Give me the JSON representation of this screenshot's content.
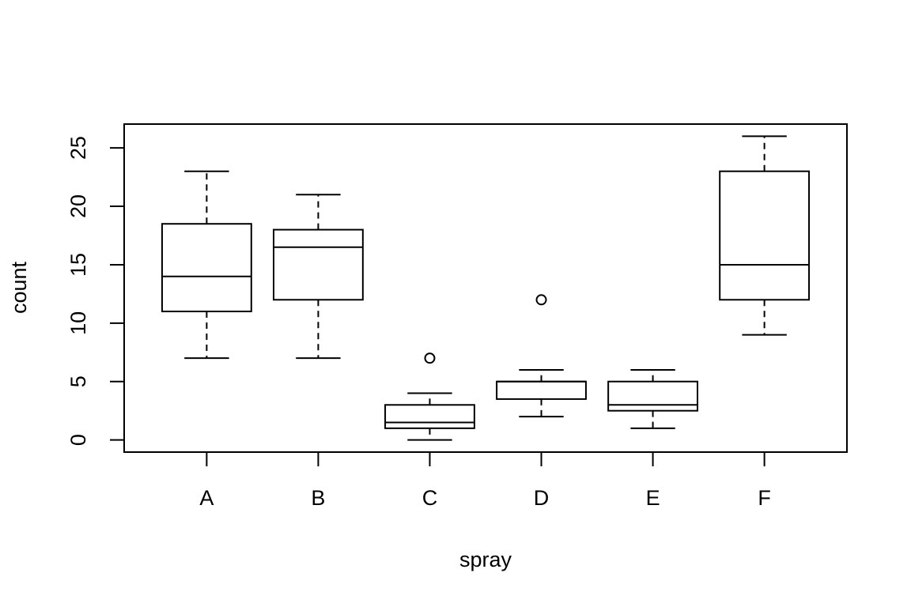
{
  "chart_data": {
    "type": "boxplot",
    "x_label": "spray",
    "y_label": "count",
    "categories": [
      "A",
      "B",
      "C",
      "D",
      "E",
      "F"
    ],
    "boxes": [
      {
        "min": 7,
        "q1": 11,
        "median": 14,
        "q3": 18.5,
        "max": 23
      },
      {
        "min": 7,
        "q1": 12,
        "median": 16.5,
        "q3": 18,
        "max": 21
      },
      {
        "min": 0,
        "q1": 1,
        "median": 1.5,
        "q3": 3,
        "max": 4,
        "outliers": [
          7
        ]
      },
      {
        "min": 2,
        "q1": 3.5,
        "median": 5,
        "q3": 5,
        "max": 6,
        "outliers": [
          12
        ]
      },
      {
        "min": 1,
        "q1": 2.5,
        "median": 3,
        "q3": 5,
        "max": 6
      },
      {
        "min": 9,
        "q1": 12,
        "median": 15,
        "q3": 23,
        "max": 26
      }
    ],
    "color": "#000000",
    "ylim": [
      -1.04,
      27.04
    ],
    "yticks": [
      0,
      5,
      10,
      15,
      20,
      25
    ],
    "grid": false
  }
}
